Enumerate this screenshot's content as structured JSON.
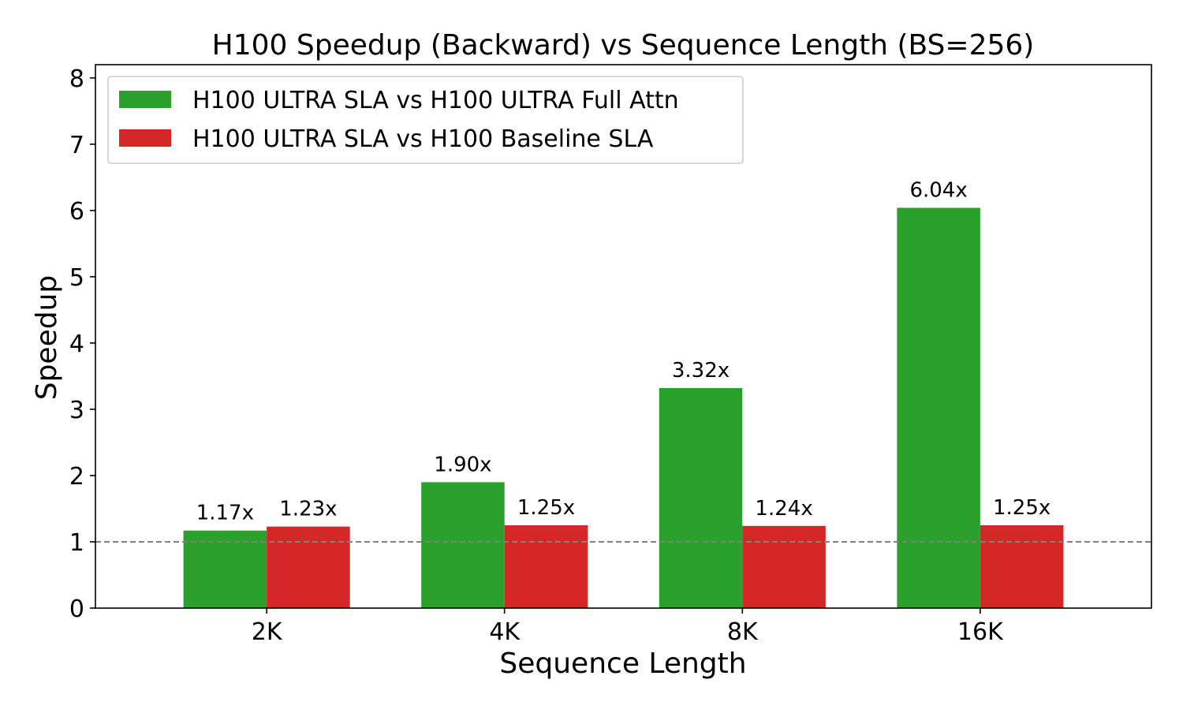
{
  "chart_data": {
    "type": "bar",
    "title": "H100 Speedup (Backward) vs Sequence Length (BS=256)",
    "xlabel": "Sequence Length",
    "ylabel": "Speedup",
    "categories": [
      "2K",
      "4K",
      "8K",
      "16K"
    ],
    "series": [
      {
        "name": "H100 ULTRA SLA vs H100 ULTRA Full Attn",
        "color": "#2ca02c",
        "values": [
          1.17,
          1.9,
          3.32,
          6.04
        ],
        "labels": [
          "1.17x",
          "1.90x",
          "3.32x",
          "6.04x"
        ]
      },
      {
        "name": "H100 ULTRA SLA vs H100 Baseline SLA",
        "color": "#d62728",
        "values": [
          1.23,
          1.25,
          1.24,
          1.25
        ],
        "labels": [
          "1.23x",
          "1.25x",
          "1.24x",
          "1.25x"
        ]
      }
    ],
    "ylim": [
      0,
      8.2
    ],
    "yticks": [
      0,
      1,
      2,
      3,
      4,
      5,
      6,
      7,
      8
    ],
    "reference_line": {
      "y": 1,
      "style": "dashed",
      "color": "#808080"
    },
    "legend_position": "top-left",
    "grid": false
  }
}
